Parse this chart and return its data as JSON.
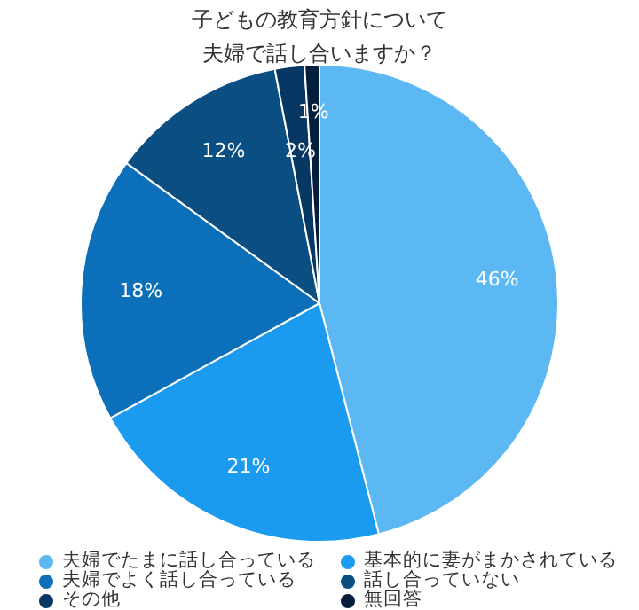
{
  "chart_data": {
    "type": "pie",
    "title": "子どもの教育方針について夫婦で話し合いますか？",
    "categories": [
      "夫婦でたまに話し合っている",
      "基本的に妻がまかされている",
      "夫婦でよく話し合っている",
      "話し合っていない",
      "その他",
      "無回答"
    ],
    "values": [
      46,
      21,
      18,
      12,
      2,
      1
    ],
    "colors": [
      "#5bb8f2",
      "#1b9bef",
      "#0b70b9",
      "#0a4e82",
      "#073763",
      "#061e3d"
    ],
    "value_labels": [
      "46%",
      "21%",
      "18%",
      "12%",
      "2%",
      "1%"
    ],
    "legend": "bottom"
  }
}
